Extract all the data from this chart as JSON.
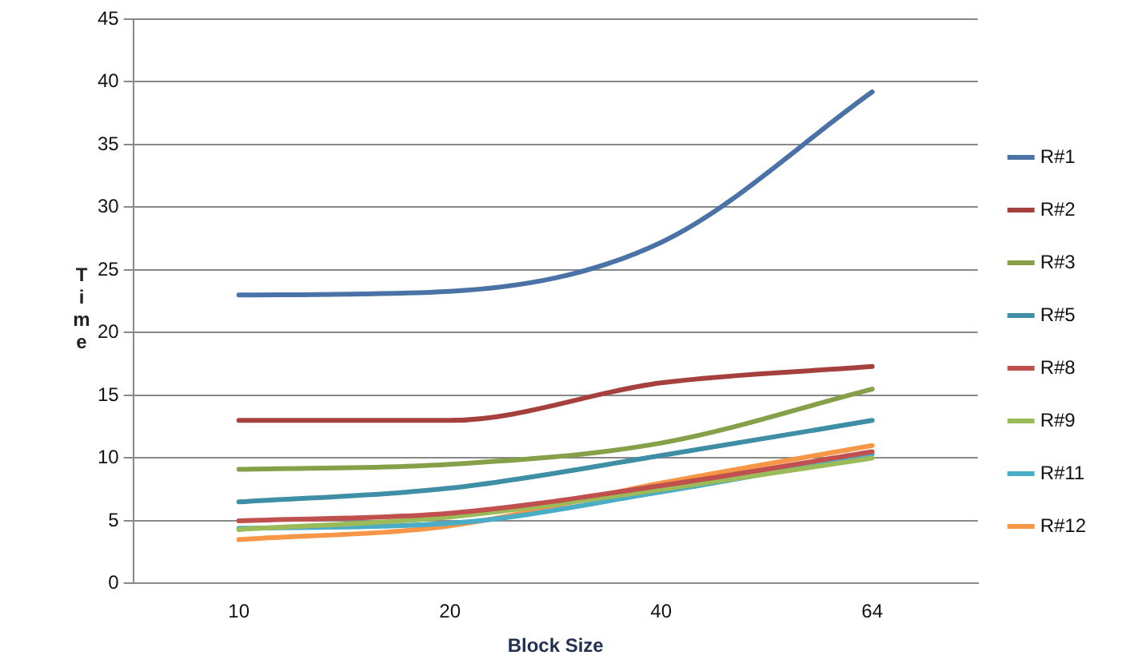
{
  "chart_data": {
    "type": "line",
    "xlabel": "Block Size",
    "ylabel": "Time",
    "categories": [
      "10",
      "20",
      "40",
      "64"
    ],
    "series": [
      {
        "name": "R#1",
        "color": "#4a72a6",
        "values": [
          23,
          23.3,
          27.2,
          39.2
        ]
      },
      {
        "name": "R#2",
        "color": "#a5403c",
        "values": [
          13,
          13,
          16,
          17.3
        ]
      },
      {
        "name": "R#3",
        "color": "#86a04a",
        "values": [
          9.1,
          9.5,
          11.2,
          15.5
        ]
      },
      {
        "name": "R#5",
        "color": "#3e8ea5",
        "values": [
          6.5,
          7.6,
          10.2,
          13
        ]
      },
      {
        "name": "R#8",
        "color": "#c0504d",
        "values": [
          5,
          5.6,
          7.8,
          10.5
        ]
      },
      {
        "name": "R#9",
        "color": "#9bbb59",
        "values": [
          4.3,
          5.3,
          7.5,
          10
        ]
      },
      {
        "name": "R#11",
        "color": "#4bacc6",
        "values": [
          4.4,
          4.8,
          7.3,
          10.3
        ]
      },
      {
        "name": "R#12",
        "color": "#f79646",
        "values": [
          3.5,
          4.6,
          8,
          11
        ]
      }
    ],
    "ylim": [
      0,
      45
    ],
    "yticks": [
      0,
      5,
      10,
      15,
      20,
      25,
      30,
      35,
      40,
      45
    ],
    "grid": "y",
    "legend": "right",
    "marker": "none",
    "line_style": "solid"
  }
}
